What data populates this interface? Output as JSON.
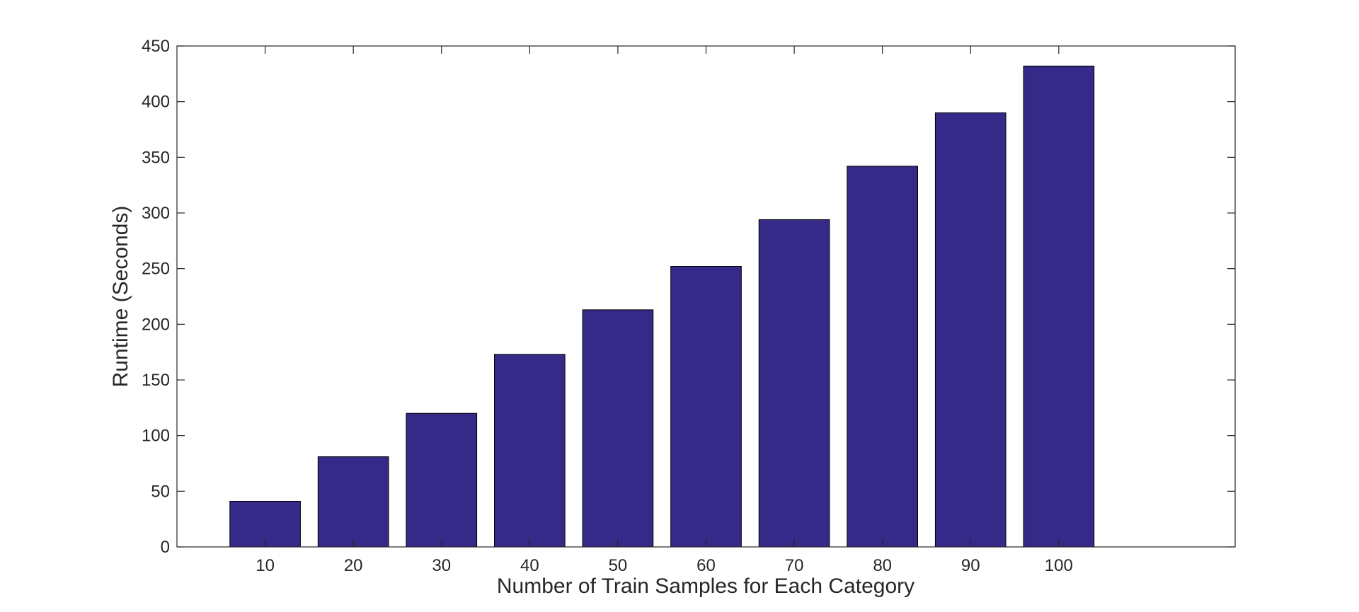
{
  "chart_data": {
    "type": "bar",
    "categories": [
      "10",
      "20",
      "30",
      "40",
      "50",
      "60",
      "70",
      "80",
      "90",
      "100"
    ],
    "values": [
      41,
      81,
      120,
      173,
      213,
      252,
      294,
      342,
      390,
      432
    ],
    "title": "",
    "xlabel": "Number of Train Samples for Each Category",
    "ylabel": "Runtime (Seconds)",
    "ylim": [
      0,
      450
    ],
    "yticks": [
      "0",
      "50",
      "100",
      "150",
      "200",
      "250",
      "300",
      "350",
      "400",
      "450"
    ],
    "grid": false,
    "legend": "none",
    "bar_color": "#352a87",
    "edge_color": "#000000"
  }
}
